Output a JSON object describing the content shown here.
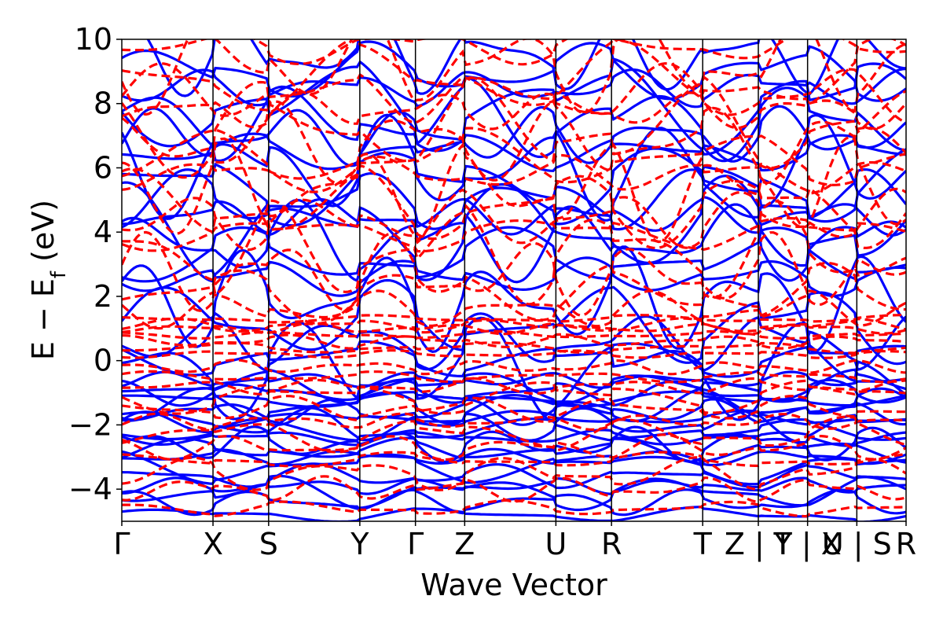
{
  "chart_data": {
    "type": "line",
    "title": "",
    "xlabel": "Wave Vector",
    "ylabel": "E − E",
    "ylabel_sub": "f",
    "ylabel_unit": " (eV)",
    "ylim": [
      -5,
      10
    ],
    "xlim": [
      0,
      8.6
    ],
    "yticks": [
      -4,
      -2,
      0,
      2,
      4,
      6,
      8,
      10
    ],
    "ytick_labels": [
      "−4",
      "−2",
      "0",
      "2",
      "4",
      "6",
      "8",
      "10"
    ],
    "kpoints": [
      {
        "label": "Γ",
        "x": 0.0
      },
      {
        "label": "X",
        "x": 1.0
      },
      {
        "label": "S",
        "x": 1.61
      },
      {
        "label": "Y",
        "x": 2.61
      },
      {
        "label": "Γ",
        "x": 3.22
      },
      {
        "label": "Z",
        "x": 3.76
      },
      {
        "label": "U",
        "x": 4.76
      },
      {
        "label": "R",
        "x": 5.37
      },
      {
        "label": "T",
        "x": 6.37
      },
      {
        "label": "Z | Y",
        "x": 6.98
      },
      {
        "label": "T | X",
        "x": 7.52
      },
      {
        "label": "U | S",
        "x": 8.06
      },
      {
        "label": "R",
        "x": 8.6
      }
    ],
    "gridlines": "vertical at k-points",
    "legend": "none",
    "series": [
      {
        "style": "solid",
        "color": "#0000ff",
        "band_levels": [
          -4.8,
          -4.4,
          -4.1,
          -3.9,
          -3.6,
          -3.3,
          -3.0,
          -2.8,
          -2.6,
          -2.4,
          -2.2,
          -2.0,
          -1.8,
          -1.6,
          -1.4,
          -1.2,
          -1.0,
          -0.8,
          -0.6,
          -0.3,
          0.1,
          0.6,
          1.2,
          1.9,
          2.6,
          3.2,
          3.7,
          4.1,
          4.5,
          5.0,
          5.5,
          6.0,
          6.5,
          7.0,
          7.5,
          8.0,
          8.5,
          9.0,
          9.5
        ]
      },
      {
        "style": "dashed",
        "color": "#ff0000",
        "band_levels": [
          -4.6,
          -4.0,
          -3.5,
          -3.1,
          -2.7,
          -2.3,
          -1.9,
          -1.5,
          -1.1,
          -0.8,
          -0.5,
          -0.2,
          0.2,
          0.4,
          0.6,
          0.8,
          1.0,
          1.1,
          1.3,
          1.6,
          2.1,
          2.7,
          3.4,
          4.0,
          4.4,
          4.8,
          5.3,
          5.8,
          6.3,
          6.8,
          7.3,
          7.8,
          8.3,
          8.8,
          9.3,
          9.8
        ]
      }
    ]
  }
}
